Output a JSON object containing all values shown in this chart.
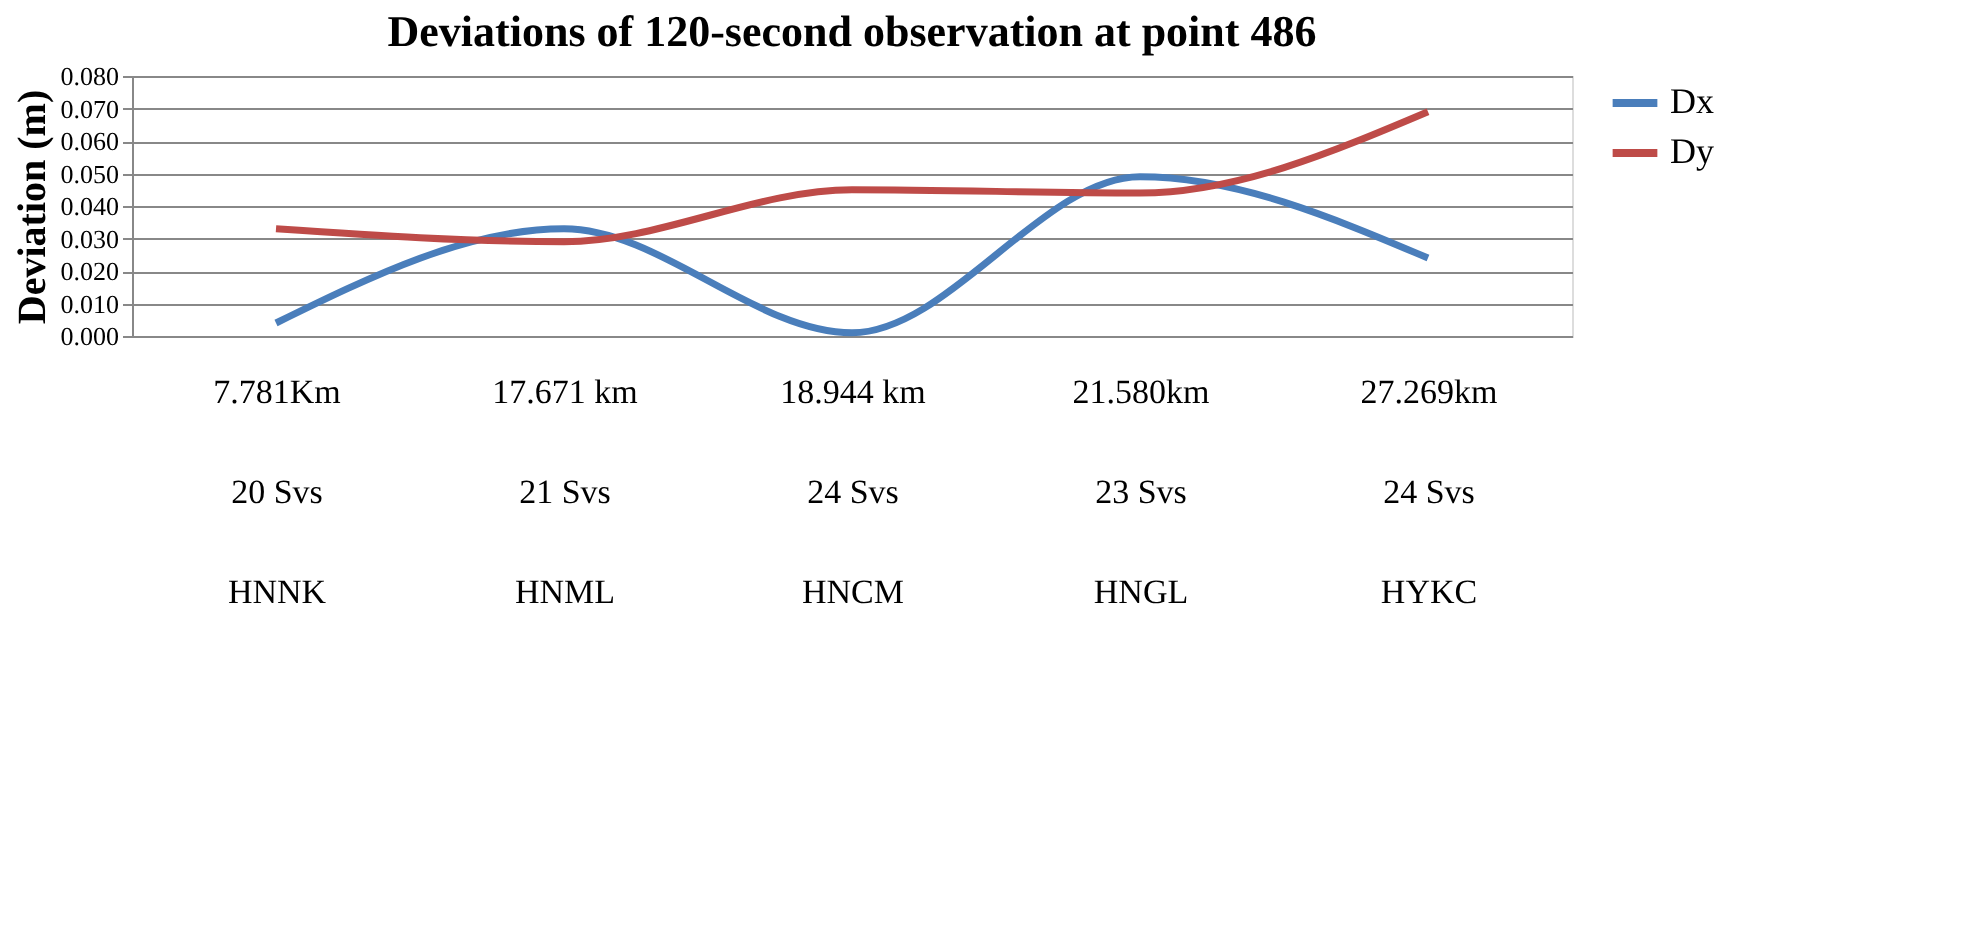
{
  "chart_data": {
    "type": "line",
    "title": "Deviations of 120-second observation at point 486",
    "ylabel": "Deviation (m)",
    "categories": [
      "7.781Km\n20 Svs\nHNNK",
      "17.671 km\n21 Svs\nHNML",
      "18.944 km\n24 Svs\nHNCM",
      "21.580km\n23 Svs\nHNGL",
      "27.269km\n24 Svs\nHYKC"
    ],
    "series": [
      {
        "name": "Dx",
        "color": "#4a7ebb",
        "values": [
          0.004,
          0.033,
          0.001,
          0.049,
          0.024
        ]
      },
      {
        "name": "Dy",
        "color": "#be4b48",
        "values": [
          0.033,
          0.029,
          0.045,
          0.044,
          0.069
        ]
      }
    ],
    "ylim": [
      0,
      0.08
    ],
    "yticks": [
      {
        "value": 0,
        "label": "0.000"
      },
      {
        "value": 0.01,
        "label": "0.010"
      },
      {
        "value": 0.02,
        "label": "0.020"
      },
      {
        "value": 0.03,
        "label": "0.030"
      },
      {
        "value": 0.04,
        "label": "0.040"
      },
      {
        "value": 0.05,
        "label": "0.050"
      },
      {
        "value": 0.06,
        "label": "0.060"
      },
      {
        "value": 0.07,
        "label": "0.070"
      },
      {
        "value": 0.08,
        "label": "0.080"
      }
    ],
    "grid": "y",
    "legend": "right",
    "marker": "none",
    "line_style": "solid"
  }
}
